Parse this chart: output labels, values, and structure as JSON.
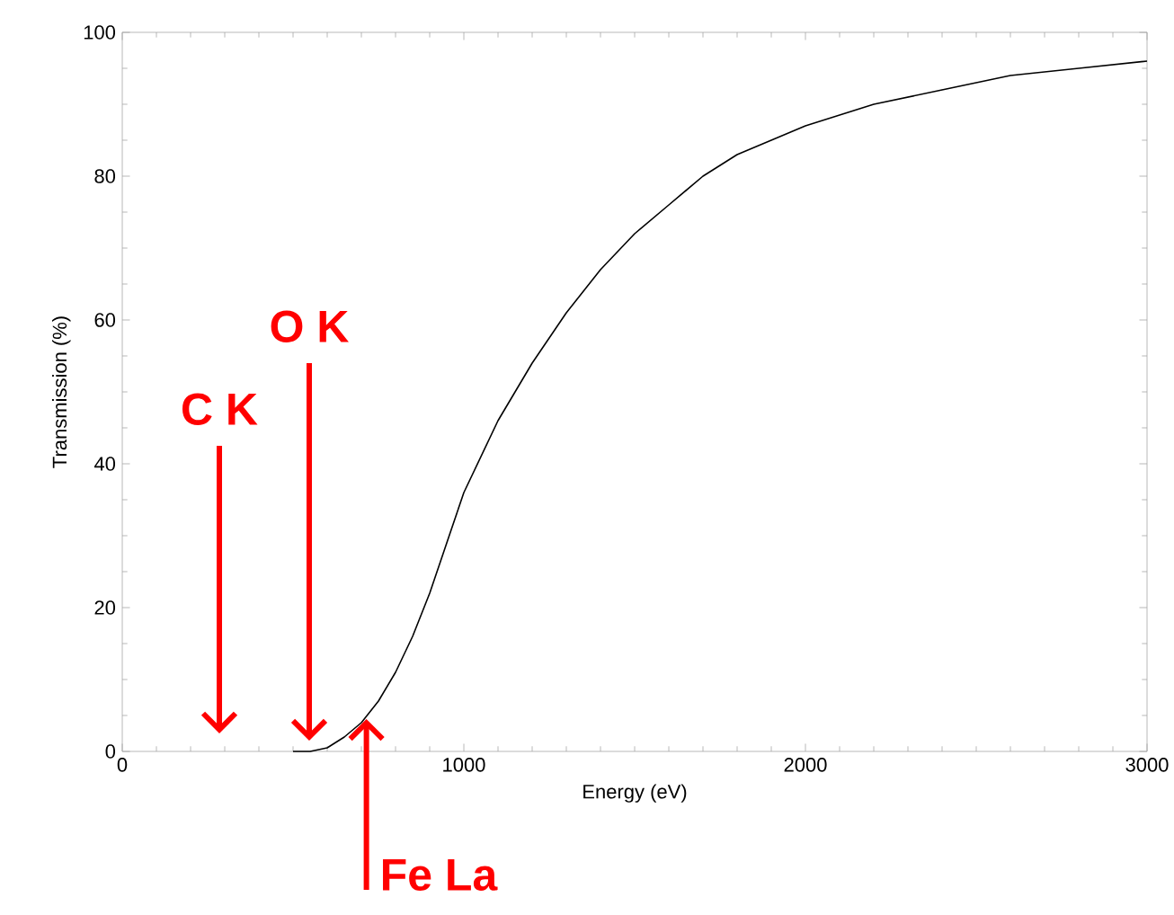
{
  "chart_data": {
    "type": "line",
    "xlabel": "Energy (eV)",
    "ylabel": "Transmission (%)",
    "x": [
      500,
      550,
      600,
      650,
      700,
      750,
      800,
      850,
      900,
      950,
      1000,
      1100,
      1200,
      1300,
      1400,
      1500,
      1600,
      1700,
      1800,
      1900,
      2000,
      2200,
      2400,
      2600,
      2800,
      3000
    ],
    "series": [
      {
        "color": "#000000",
        "values": [
          0,
          0,
          0.5,
          2,
          4,
          7,
          11,
          16,
          22,
          29,
          36,
          46,
          54,
          61,
          67,
          72,
          76,
          80,
          83,
          85,
          87,
          90,
          92,
          94,
          95,
          96
        ]
      }
    ],
    "xlim": [
      0,
      3000
    ],
    "ylim": [
      0,
      100
    ],
    "xticks": [
      0,
      1000,
      2000,
      3000
    ],
    "yticks": [
      0,
      20,
      40,
      60,
      80,
      100
    ],
    "grid": false,
    "marker": "none",
    "line_style": "solid",
    "annotations": [
      "C K",
      "O K",
      {
        "text": "Fe La",
        "x": 715,
        "y": 4.5
      }
    ]
  }
}
